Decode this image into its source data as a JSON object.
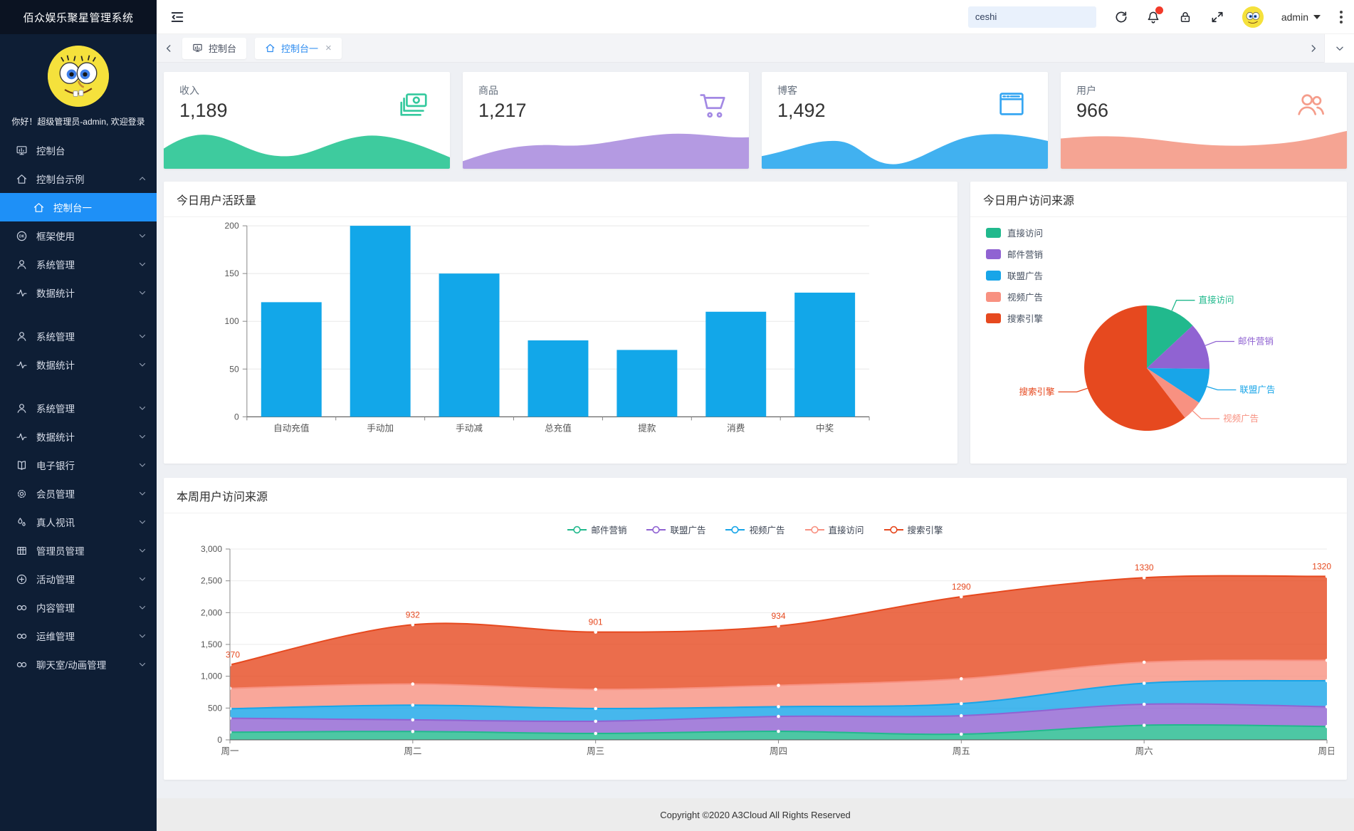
{
  "app": {
    "title": "佰众娱乐聚星管理系统",
    "welcome": "你好！超级管理员-admin, 欢迎登录"
  },
  "header": {
    "search_value": "ceshi",
    "username": "admin",
    "icons": [
      "collapse-sidebar-icon",
      "refresh-icon",
      "bell-icon",
      "lock-icon",
      "fullscreen-icon",
      "kebab-menu-icon"
    ]
  },
  "tabs": [
    {
      "key": "console",
      "label": "控制台",
      "icon": "dashboard-icon",
      "active": false,
      "closable": false
    },
    {
      "key": "console-one",
      "label": "控制台一",
      "icon": "home-icon",
      "active": true,
      "closable": true
    }
  ],
  "sidebar": {
    "items": [
      {
        "key": "console",
        "label": "控制台",
        "icon": "dashboard-icon",
        "chevron": false
      },
      {
        "key": "console-demo",
        "label": "控制台示例",
        "icon": "home-icon",
        "chevron": true,
        "expanded": true,
        "children": [
          {
            "key": "console-one",
            "label": "控制台一",
            "icon": "home-icon",
            "active": true
          }
        ]
      },
      {
        "key": "framework-usage",
        "label": "框架使用",
        "icon": "ok-circle-icon",
        "chevron": true
      },
      {
        "key": "system-mgmt-1",
        "label": "系统管理",
        "icon": "user-icon",
        "chevron": true
      },
      {
        "key": "data-stats-1",
        "label": "数据统计",
        "icon": "activity-icon",
        "chevron": true
      },
      {
        "key": "system-mgmt-2",
        "label": "系统管理",
        "icon": "user-icon",
        "chevron": true,
        "gap_before": true
      },
      {
        "key": "data-stats-2",
        "label": "数据统计",
        "icon": "activity-icon",
        "chevron": true
      },
      {
        "key": "system-mgmt-3",
        "label": "系统管理",
        "icon": "user-icon",
        "chevron": true,
        "gap_before": true
      },
      {
        "key": "data-stats-3",
        "label": "数据统计",
        "icon": "activity-icon",
        "chevron": true
      },
      {
        "key": "e-bank",
        "label": "电子银行",
        "icon": "book-icon",
        "chevron": true
      },
      {
        "key": "member-mgmt",
        "label": "会员管理",
        "icon": "gear-icon",
        "chevron": true
      },
      {
        "key": "live-video",
        "label": "真人视讯",
        "icon": "drops-icon",
        "chevron": true
      },
      {
        "key": "admin-mgmt",
        "label": "管理员管理",
        "icon": "table-icon",
        "chevron": true
      },
      {
        "key": "activity-mgmt",
        "label": "活动管理",
        "icon": "plus-circle-icon",
        "chevron": true
      },
      {
        "key": "content-mgmt",
        "label": "内容管理",
        "icon": "link-icon",
        "chevron": true
      },
      {
        "key": "ops-mgmt",
        "label": "运维管理",
        "icon": "link-icon",
        "chevron": true
      },
      {
        "key": "chatroom-anim-mgmt",
        "label": "聊天室/动画管理",
        "icon": "link-icon",
        "chevron": true
      }
    ]
  },
  "stat_cards": [
    {
      "label": "收入",
      "value": "1,189",
      "icon": "money-icon",
      "color": "#35c99e",
      "wave_color": "#3ecb9e"
    },
    {
      "label": "商品",
      "value": "1,217",
      "icon": "cart-icon",
      "color": "#a389e4",
      "wave_color": "#b49ae2"
    },
    {
      "label": "博客",
      "value": "1,492",
      "icon": "browser-icon",
      "color": "#36a6f2",
      "wave_color": "#41b1f0"
    },
    {
      "label": "用户",
      "value": "966",
      "icon": "users-icon",
      "color": "#f59d8b",
      "wave_color": "#f5a493"
    }
  ],
  "chart_data": [
    {
      "type": "bar",
      "title": "今日用户活跃量",
      "categories": [
        "自动充值",
        "手动加",
        "手动减",
        "总充值",
        "提款",
        "消费",
        "中奖"
      ],
      "values": [
        120,
        200,
        150,
        80,
        70,
        110,
        130
      ],
      "xlabel": "",
      "ylabel": "",
      "ylim": [
        0,
        200
      ],
      "yticks": [
        0,
        50,
        100,
        150,
        200
      ],
      "grid": true,
      "bar_color": "#12a7e9"
    },
    {
      "type": "pie",
      "title": "今日用户访问来源",
      "labels": [
        "直接访问",
        "邮件营销",
        "联盟广告",
        "视频广告",
        "搜索引擎"
      ],
      "values": [
        335,
        310,
        234,
        135,
        1548
      ],
      "colors": [
        "#21b98d",
        "#9063d2",
        "#18a5e8",
        "#f89181",
        "#e6491f"
      ],
      "legend_position": "top-left"
    },
    {
      "type": "area",
      "title": "本周用户访问来源",
      "x": [
        "周一",
        "周二",
        "周三",
        "周四",
        "周五",
        "周六",
        "周日"
      ],
      "series": [
        {
          "name": "邮件营销",
          "color": "#21b98d",
          "values": [
            120,
            132,
            101,
            134,
            90,
            230,
            210
          ]
        },
        {
          "name": "联盟广告",
          "color": "#9063d2",
          "values": [
            220,
            182,
            191,
            234,
            290,
            330,
            310
          ]
        },
        {
          "name": "视频广告",
          "color": "#18a5e8",
          "values": [
            150,
            232,
            201,
            154,
            190,
            330,
            410
          ]
        },
        {
          "name": "直接访问",
          "color": "#f89181",
          "values": [
            320,
            332,
            301,
            334,
            390,
            330,
            320
          ]
        },
        {
          "name": "搜索引擎",
          "color": "#e6491f",
          "values": [
            370,
            932,
            901,
            934,
            1290,
            1330,
            1320
          ],
          "show_labels": true
        }
      ],
      "stacked": true,
      "smooth": true,
      "ylim": [
        0,
        3000
      ],
      "yticks": [
        0,
        500,
        1000,
        1500,
        2000,
        2500,
        3000
      ],
      "legend_position": "top-center",
      "grid": true
    }
  ],
  "footer": {
    "copyright": "Copyright ©2020 A3Cloud All Rights Reserved"
  }
}
